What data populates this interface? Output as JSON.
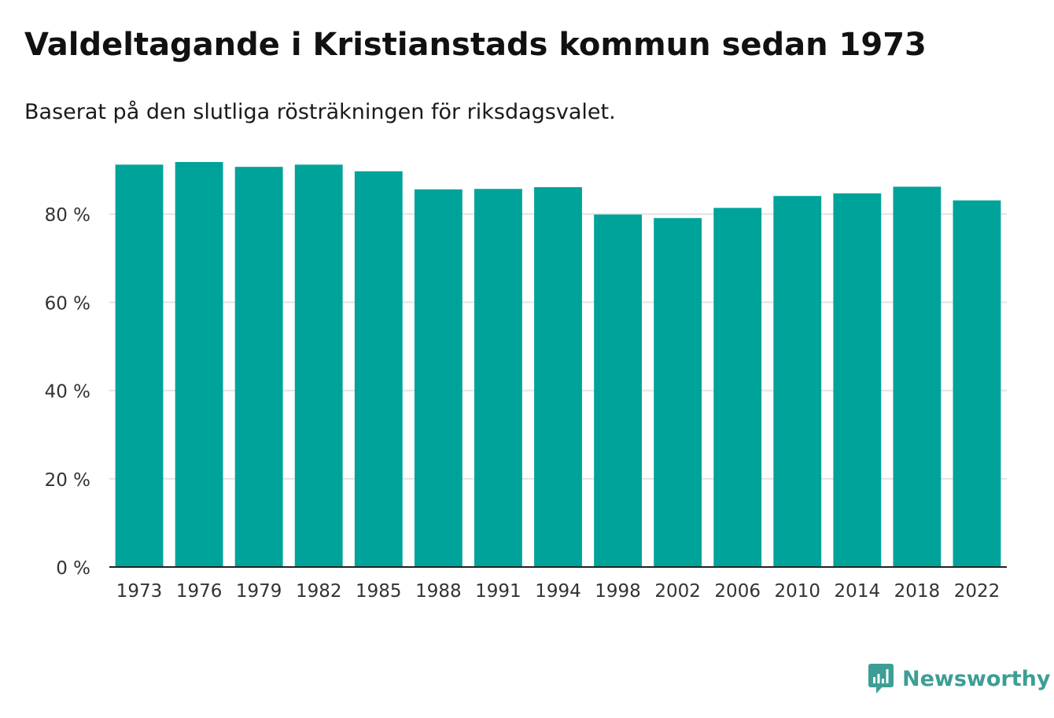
{
  "title": "Valdeltagande i Kristianstads kommun sedan 1973",
  "subtitle": "Baserat på den slutliga rösträkningen för riksdagsvalet.",
  "brand": {
    "name": "Newsworthy",
    "icon": "newsworthy-logo-icon",
    "color": "#3d9e94"
  },
  "colors": {
    "bar": "#00a39a",
    "grid": "#e3e3e3",
    "axis": "#222222"
  },
  "chart_data": {
    "type": "bar",
    "title": "Valdeltagande i Kristianstads kommun sedan 1973",
    "xlabel": "",
    "ylabel": "",
    "ylim": [
      0,
      100
    ],
    "yticks": [
      0,
      20,
      40,
      60,
      80
    ],
    "ytick_labels": [
      "0 %",
      "20 %",
      "40 %",
      "60 %",
      "80 %"
    ],
    "categories": [
      "1973",
      "1976",
      "1979",
      "1982",
      "1985",
      "1988",
      "1991",
      "1994",
      "1998",
      "2002",
      "2006",
      "2010",
      "2014",
      "2018",
      "2022"
    ],
    "values": [
      91.2,
      91.8,
      90.7,
      91.2,
      89.7,
      85.6,
      85.7,
      86.1,
      79.9,
      79.1,
      81.4,
      84.1,
      84.7,
      86.2,
      83.1
    ],
    "grid": true,
    "legend": "none"
  }
}
